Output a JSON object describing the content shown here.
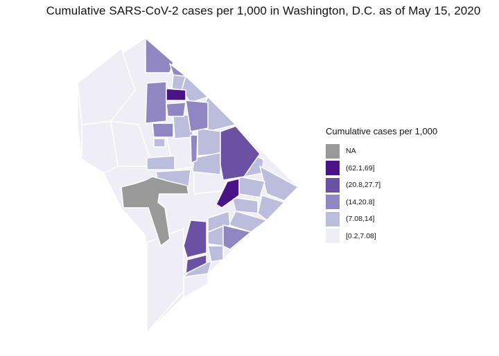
{
  "title": "Cumulative SARS-CoV-2 cases per 1,000 in Washington, D.C. as of May 15, 2020",
  "legend": {
    "title": "Cumulative cases per 1,000",
    "items": [
      {
        "label": "NA",
        "color": "#999999"
      },
      {
        "label": "(62.1,69]",
        "color": "#4a1486"
      },
      {
        "label": "(20.8,27.7]",
        "color": "#6a51a3"
      },
      {
        "label": "(14,20.8]",
        "color": "#8f86c2"
      },
      {
        "label": "(7.08,14]",
        "color": "#bcbddc"
      },
      {
        "label": "[0.2,7.08]",
        "color": "#efedf5"
      }
    ]
  }
}
